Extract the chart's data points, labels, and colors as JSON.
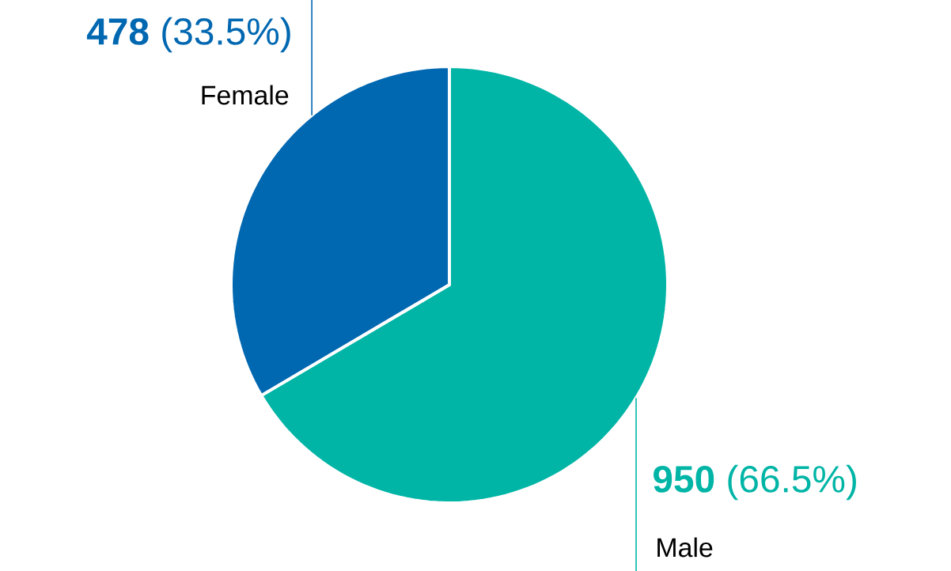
{
  "chart_data": {
    "type": "pie",
    "categories": [
      "Male",
      "Female"
    ],
    "values": [
      950,
      478
    ],
    "colors": [
      "#00b5a6",
      "#0067b1"
    ],
    "value_labels": [
      "**950** (66.5%)",
      "**478** (33.5%)"
    ]
  }
}
